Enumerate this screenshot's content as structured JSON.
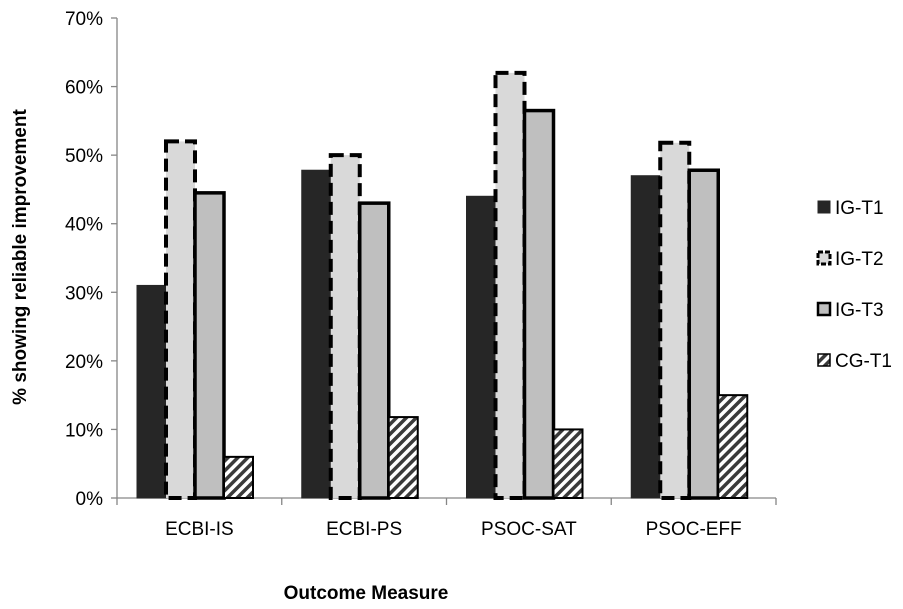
{
  "chart_data": {
    "type": "bar",
    "categories": [
      "ECBI-IS",
      "ECBI-PS",
      "PSOC-SAT",
      "PSOC-EFF"
    ],
    "series": [
      {
        "name": "IG-T1",
        "values": [
          31,
          47.8,
          44,
          47
        ],
        "fill": "#262626",
        "stroke": "#262626",
        "style": "solid-dark"
      },
      {
        "name": "IG-T2",
        "values": [
          52,
          50,
          62,
          51.8
        ],
        "fill": "#d9d9d9",
        "stroke": "#000000",
        "style": "dashed-outline"
      },
      {
        "name": "IG-T3",
        "values": [
          44.5,
          43,
          56.5,
          47.8
        ],
        "fill": "#bfbfbf",
        "stroke": "#000000",
        "style": "thick-outline"
      },
      {
        "name": "CG-T1",
        "values": [
          6,
          11.8,
          10,
          15
        ],
        "fill": "#ffffff",
        "stroke": "#000000",
        "style": "hatched"
      }
    ],
    "ylabel": "% showing reliable improvement",
    "xlabel": "Outcome Measure",
    "ylim": [
      0,
      70
    ],
    "yticks": [
      "0%",
      "10%",
      "20%",
      "30%",
      "40%",
      "50%",
      "60%",
      "70%"
    ],
    "grid": false,
    "legend": "right"
  }
}
